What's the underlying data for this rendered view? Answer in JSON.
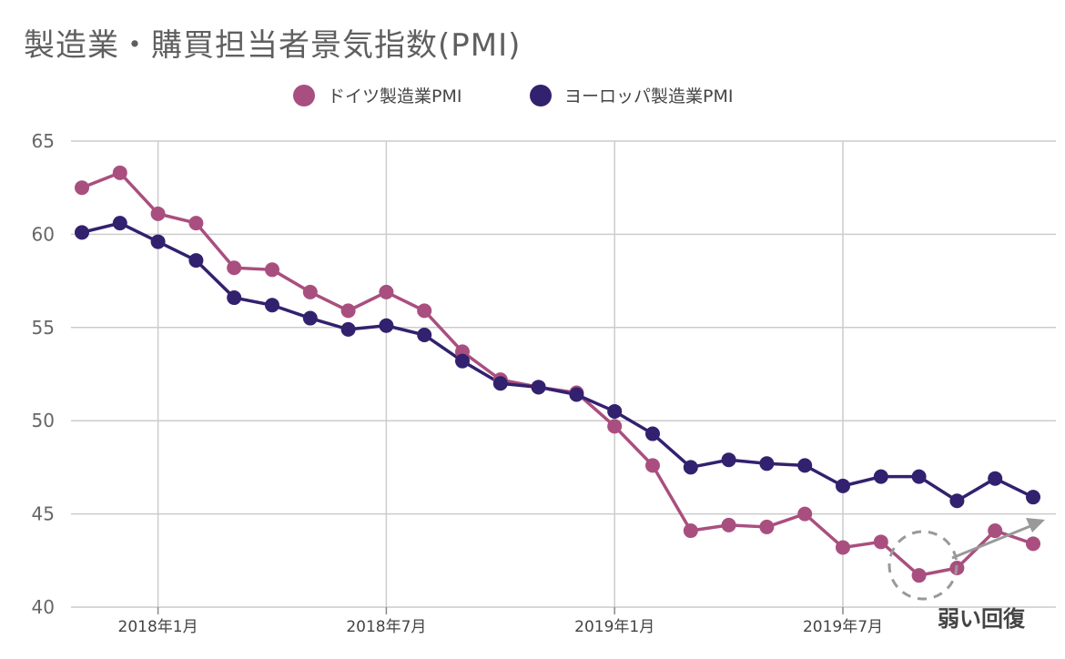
{
  "chart_data": {
    "type": "line",
    "title": "製造業・購買担当者景気指数(PMI)",
    "xlabel": "",
    "ylabel": "",
    "ylim": [
      40,
      65
    ],
    "yticks": [
      40,
      45,
      50,
      55,
      60,
      65
    ],
    "grid": true,
    "legend_position": "top",
    "x": [
      "2017年11月",
      "2017年12月",
      "2018年1月",
      "2018年2月",
      "2018年3月",
      "2018年4月",
      "2018年5月",
      "2018年6月",
      "2018年7月",
      "2018年8月",
      "2018年9月",
      "2018年10月",
      "2018年11月",
      "2018年12月",
      "2019年1月",
      "2019年2月",
      "2019年3月",
      "2019年4月",
      "2019年5月",
      "2019年6月",
      "2019年7月",
      "2019年8月",
      "2019年9月",
      "2019年10月",
      "2019年11月",
      "2019年12月"
    ],
    "xtick_labels": [
      {
        "label": "2018年1月",
        "x": "2018年1月"
      },
      {
        "label": "2018年7月",
        "x": "2018年7月"
      },
      {
        "label": "2019年1月",
        "x": "2019年1月"
      },
      {
        "label": "2019年7月",
        "x": "2019年7月"
      }
    ],
    "series": [
      {
        "name": "ドイツ製造業PMI",
        "color": "#a94f7f",
        "values": [
          62.5,
          63.3,
          61.1,
          60.6,
          58.2,
          58.1,
          56.9,
          55.9,
          56.9,
          55.9,
          53.7,
          52.2,
          51.8,
          51.5,
          49.7,
          47.6,
          44.1,
          44.4,
          44.3,
          45.0,
          43.2,
          43.5,
          41.7,
          42.1,
          44.1,
          43.4
        ]
      },
      {
        "name": "ヨーロッパ製造業PMI",
        "color": "#32216e",
        "values": [
          60.1,
          60.6,
          59.6,
          58.6,
          56.6,
          56.2,
          55.5,
          54.9,
          55.1,
          54.6,
          53.2,
          52.0,
          51.8,
          51.4,
          50.5,
          49.3,
          47.5,
          47.9,
          47.7,
          47.6,
          46.5,
          47.0,
          47.0,
          45.7,
          46.9,
          45.9
        ]
      }
    ],
    "annotation": {
      "text": "弱い回復"
    }
  },
  "colors": {
    "grid": "#cccccc",
    "circle": "#999999",
    "arrow": "#999999"
  }
}
